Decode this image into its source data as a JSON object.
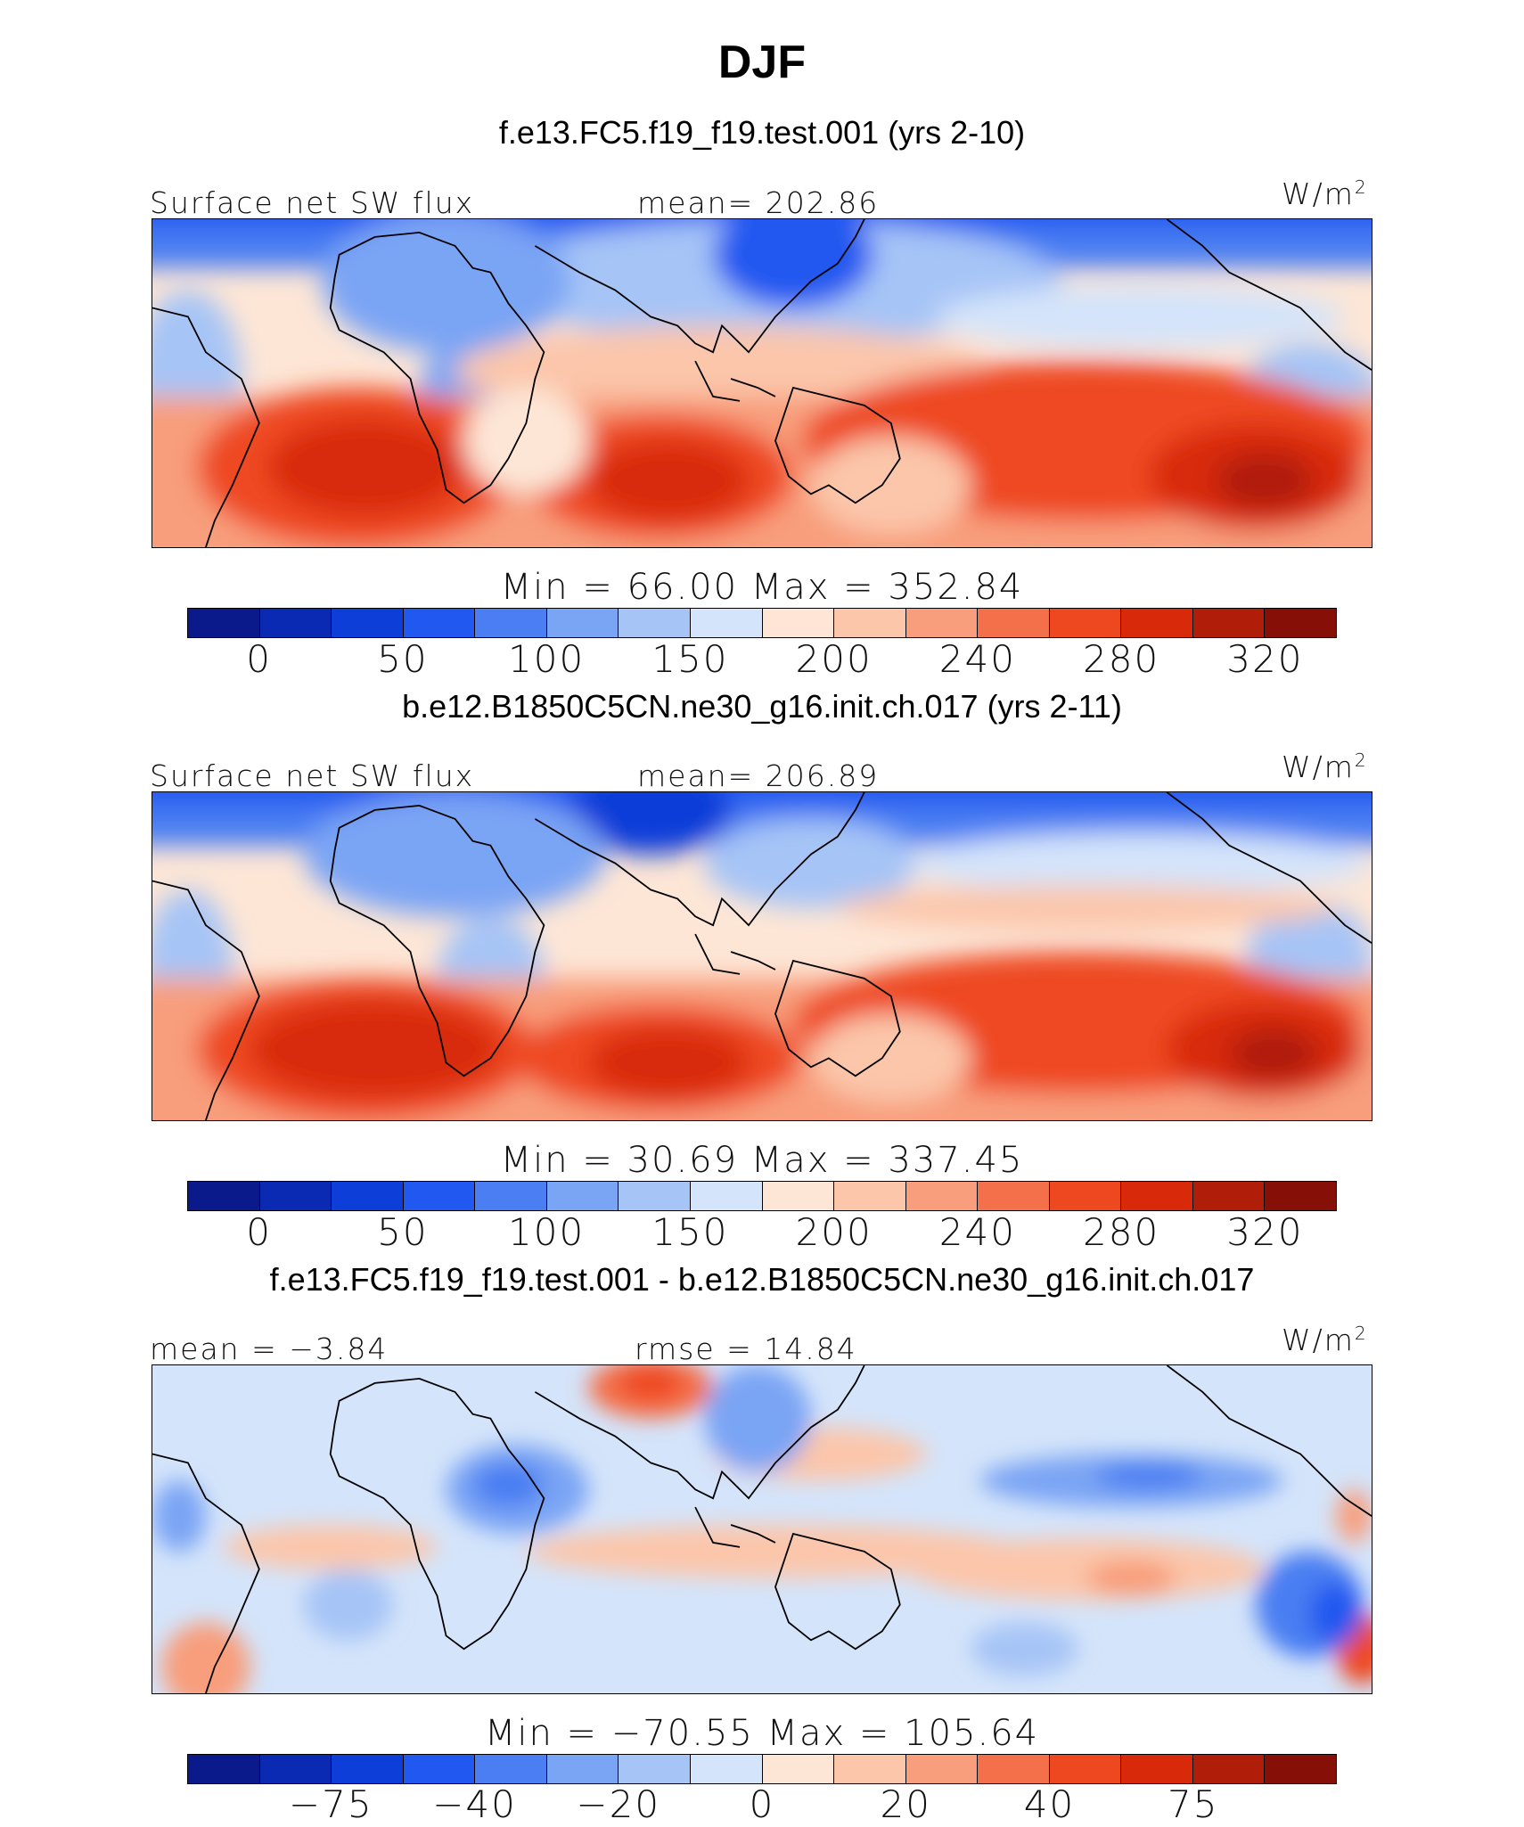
{
  "title": "DJF",
  "colors": [
    "#0a1a8a",
    "#0a2ab4",
    "#0e3ed8",
    "#2058f0",
    "#4a7ef2",
    "#7aa4f4",
    "#a6c4f6",
    "#d4e4fa",
    "#fde6d6",
    "#fbc6aa",
    "#f89e7c",
    "#f4704a",
    "#ee4820",
    "#d82a0a",
    "#b01e0a",
    "#861008"
  ],
  "panels": [
    {
      "case": "f.e13.FC5.f19_f19.test.001 (yrs 2-10)",
      "label_left": "Surface net SW flux",
      "label_mid": "mean= 202.86",
      "units": "W/m",
      "units_sup": "2",
      "minmax": "Min =   66.00  Max = 352.84",
      "ticks": [
        "0",
        "50",
        "100",
        "150",
        "200",
        "240",
        "280",
        "320"
      ]
    },
    {
      "case": "b.e12.B1850C5CN.ne30_g16.init.ch.017 (yrs 2-11)",
      "label_left": "Surface net SW flux",
      "label_mid": "mean= 206.89",
      "units": "W/m",
      "units_sup": "2",
      "minmax": "Min =   30.69  Max = 337.45",
      "ticks": [
        "0",
        "50",
        "100",
        "150",
        "200",
        "240",
        "280",
        "320"
      ]
    },
    {
      "case": "f.e13.FC5.f19_f19.test.001 - b.e12.B1850C5CN.ne30_g16.init.ch.017",
      "label_left": "mean =  −3.84",
      "label_mid": "rmse =   14.84",
      "units": "W/m",
      "units_sup": "2",
      "minmax": "Min = −70.55  Max = 105.64",
      "ticks": [
        "−75",
        "−40",
        "−20",
        "0",
        "20",
        "40",
        "75"
      ]
    }
  ]
}
